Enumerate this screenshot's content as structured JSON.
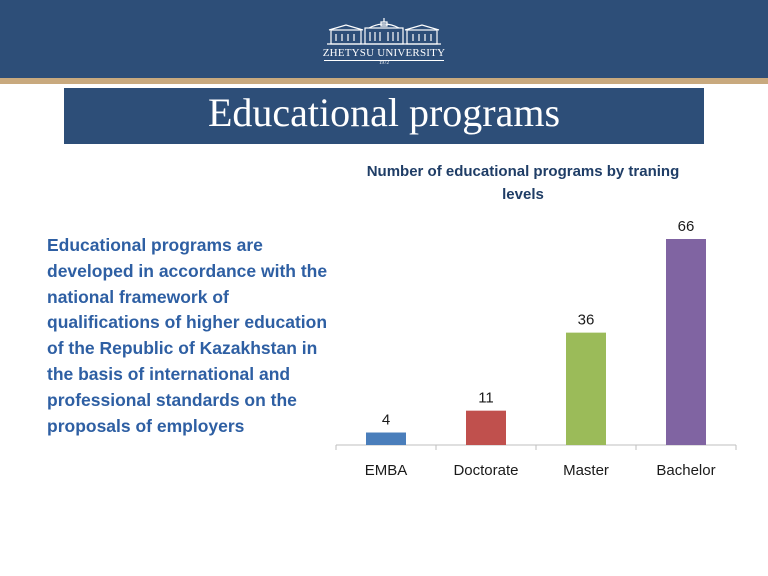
{
  "header": {
    "logo": {
      "name": "ZHETYSU UNIVERSITY",
      "year": "1972"
    },
    "page_title": "Educational programs"
  },
  "body_text": "Educational programs are developed in accordance with the national framework of qualifications of higher education of the Republic of Kazakhstan in the basis of international and professional standards on the proposals of employers",
  "chart_data": {
    "type": "bar",
    "title": "Number of educational programs by traning levels",
    "categories": [
      "EMBA",
      "Doctorate",
      "Master",
      "Bachelor"
    ],
    "values": [
      4,
      11,
      36,
      66
    ],
    "data_labels": [
      "4",
      "11",
      "36",
      "66"
    ],
    "colors": [
      "#4a7ebb",
      "#c0504d",
      "#9bbb59",
      "#8064a2"
    ],
    "ylim": [
      0,
      66
    ],
    "grid": false,
    "legend": "none",
    "xlabel": "",
    "ylabel": ""
  }
}
